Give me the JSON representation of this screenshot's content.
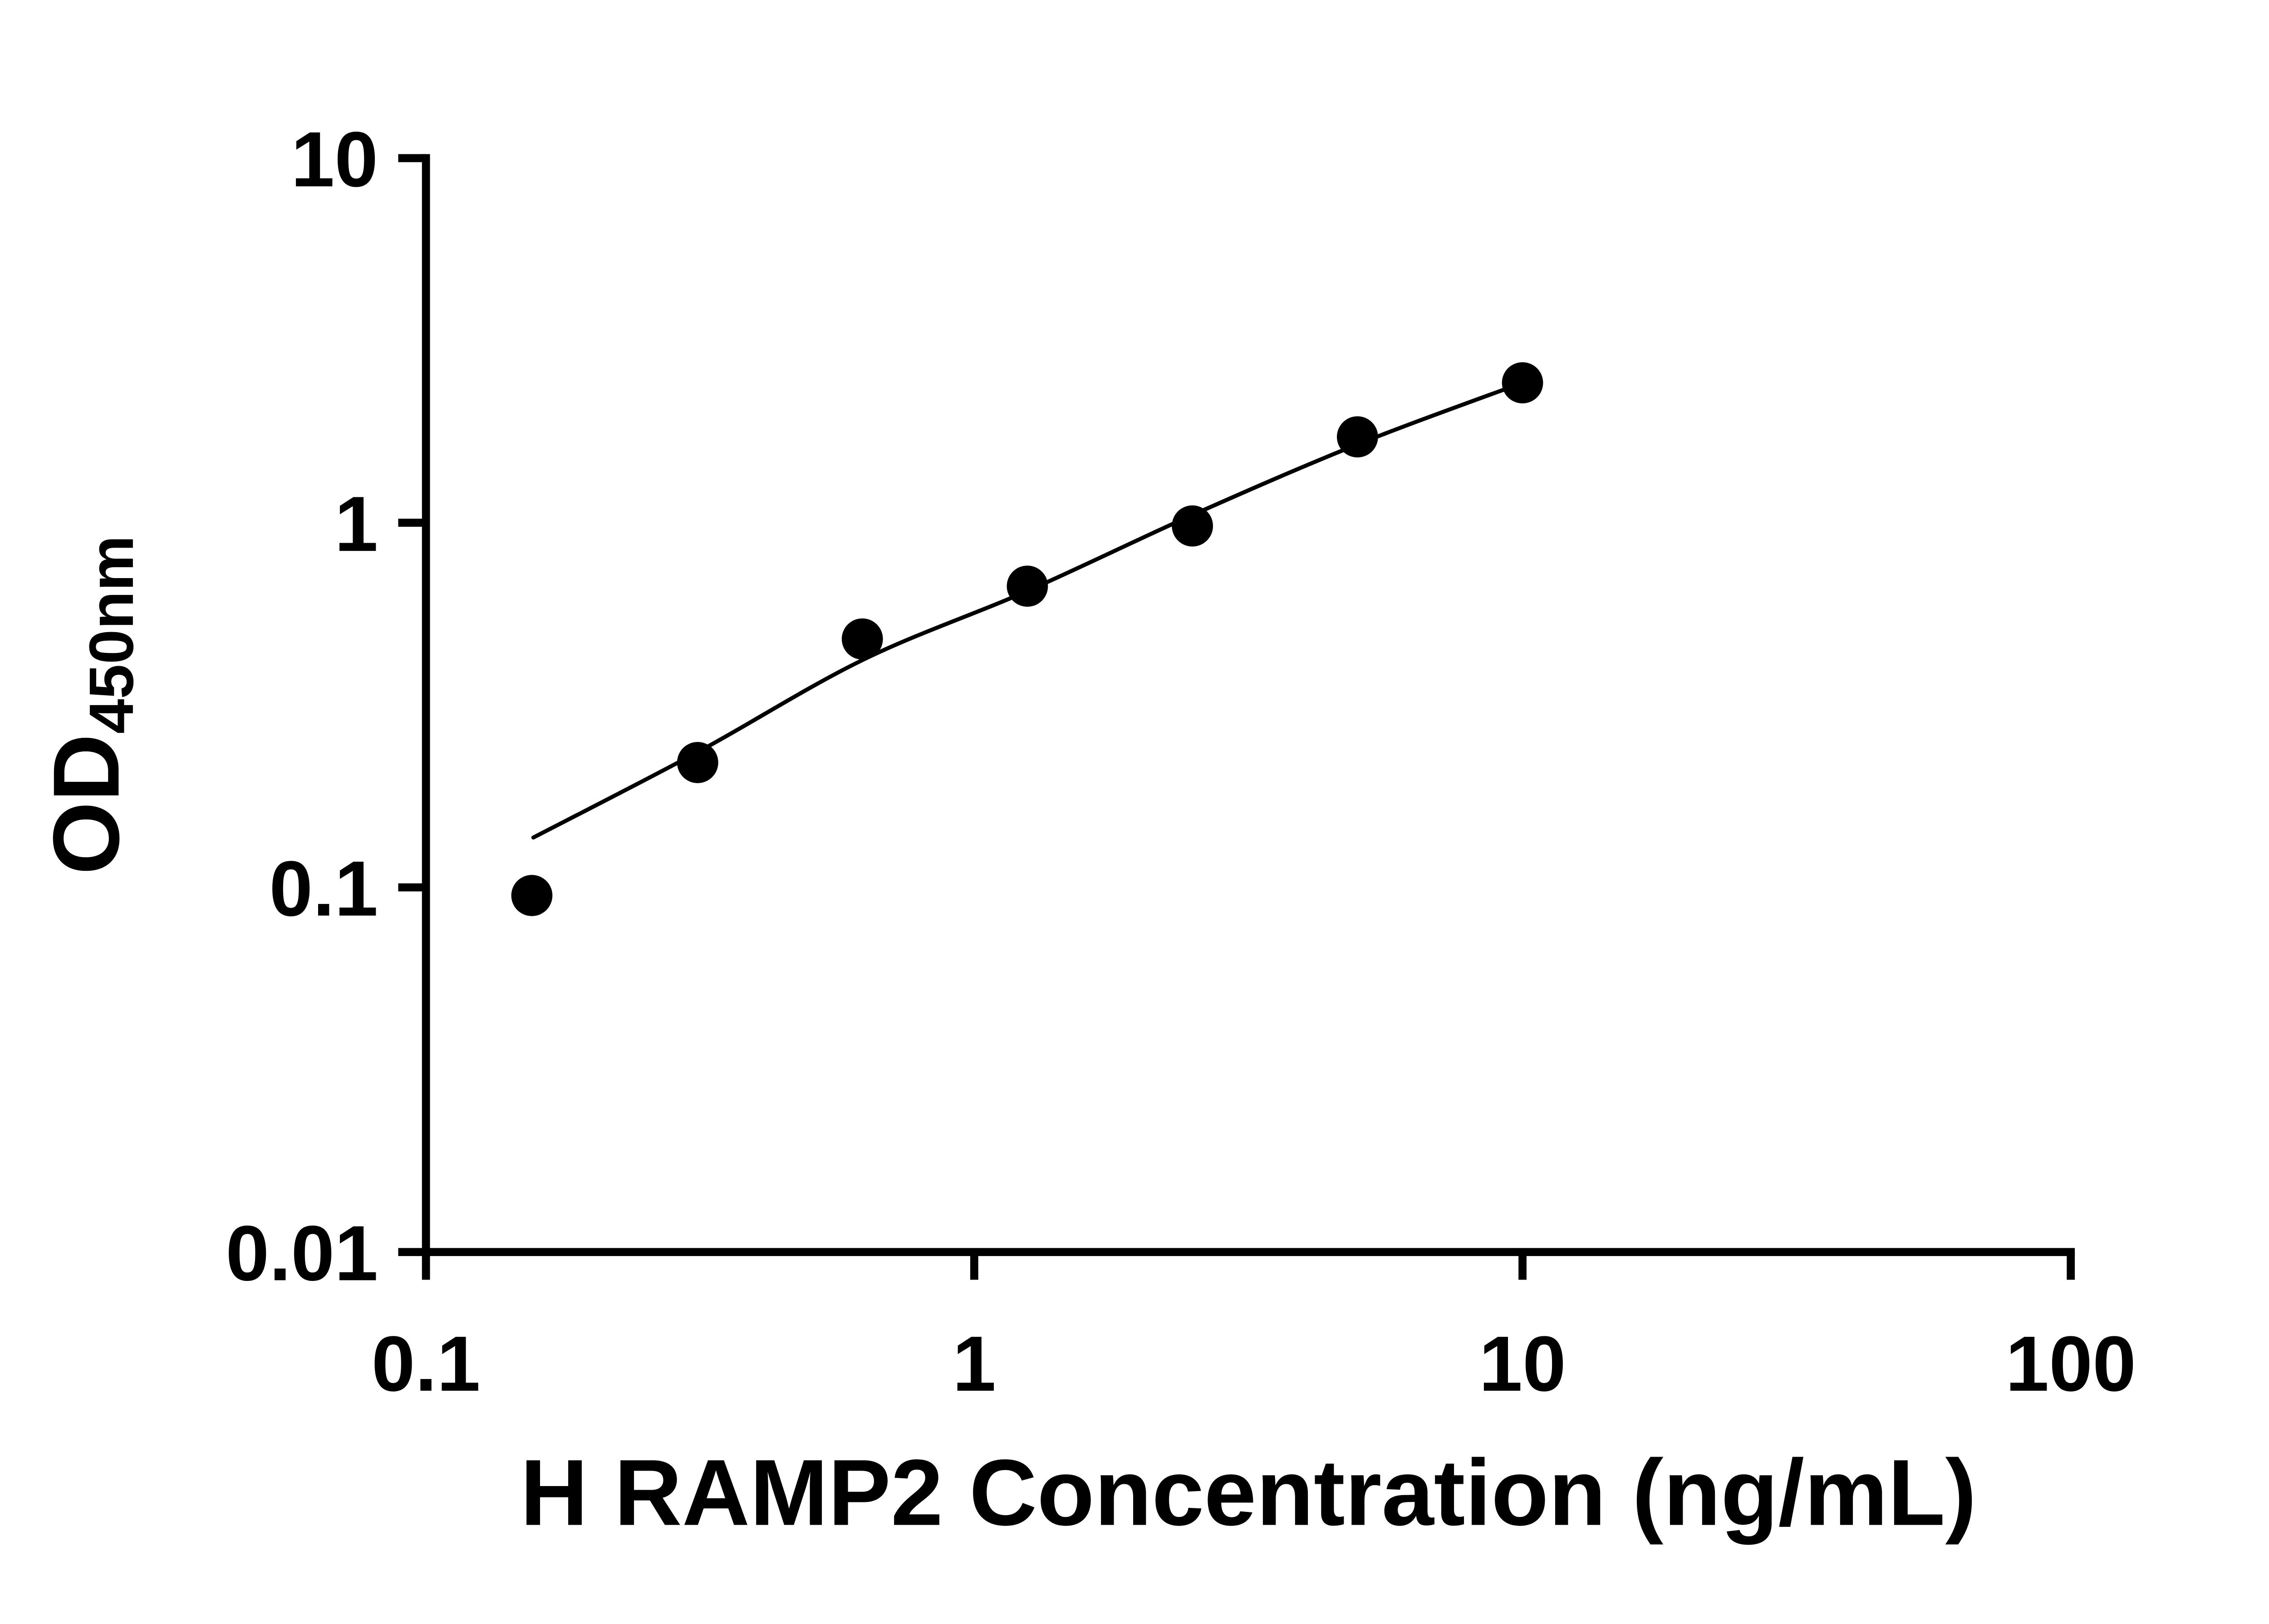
{
  "chart_data": {
    "type": "scatter",
    "title": "",
    "xlabel": "H RAMP2 Concentration (ng/mL)",
    "ylabel_main": "OD",
    "ylabel_subscript": "450nm",
    "x_scale": "log",
    "y_scale": "log",
    "xlim": [
      0.1,
      100
    ],
    "ylim": [
      0.01,
      10
    ],
    "x_ticks": [
      0.1,
      1,
      10,
      100
    ],
    "x_tick_labels": [
      "0.1",
      "1",
      "10",
      "100"
    ],
    "y_ticks": [
      0.01,
      0.1,
      1,
      10
    ],
    "y_tick_labels": [
      "0.01",
      "0.1",
      "1",
      "10"
    ],
    "grid": false,
    "legend": null,
    "axis_color": "#000000",
    "background_color": "#ffffff",
    "series": [
      {
        "name": "standard-points",
        "kind": "scatter",
        "marker": "filled-circle",
        "color": "#000000",
        "x": [
          0.156,
          0.313,
          0.625,
          1.25,
          2.5,
          5,
          10
        ],
        "y": [
          0.095,
          0.22,
          0.48,
          0.67,
          0.98,
          1.72,
          2.42
        ]
      },
      {
        "name": "fit-curve",
        "kind": "line",
        "color": "#000000",
        "x": [
          0.157,
          0.313,
          0.625,
          1.25,
          2.5,
          5,
          10
        ],
        "y": [
          0.137,
          0.235,
          0.42,
          0.65,
          1.05,
          1.64,
          2.42
        ]
      }
    ]
  }
}
